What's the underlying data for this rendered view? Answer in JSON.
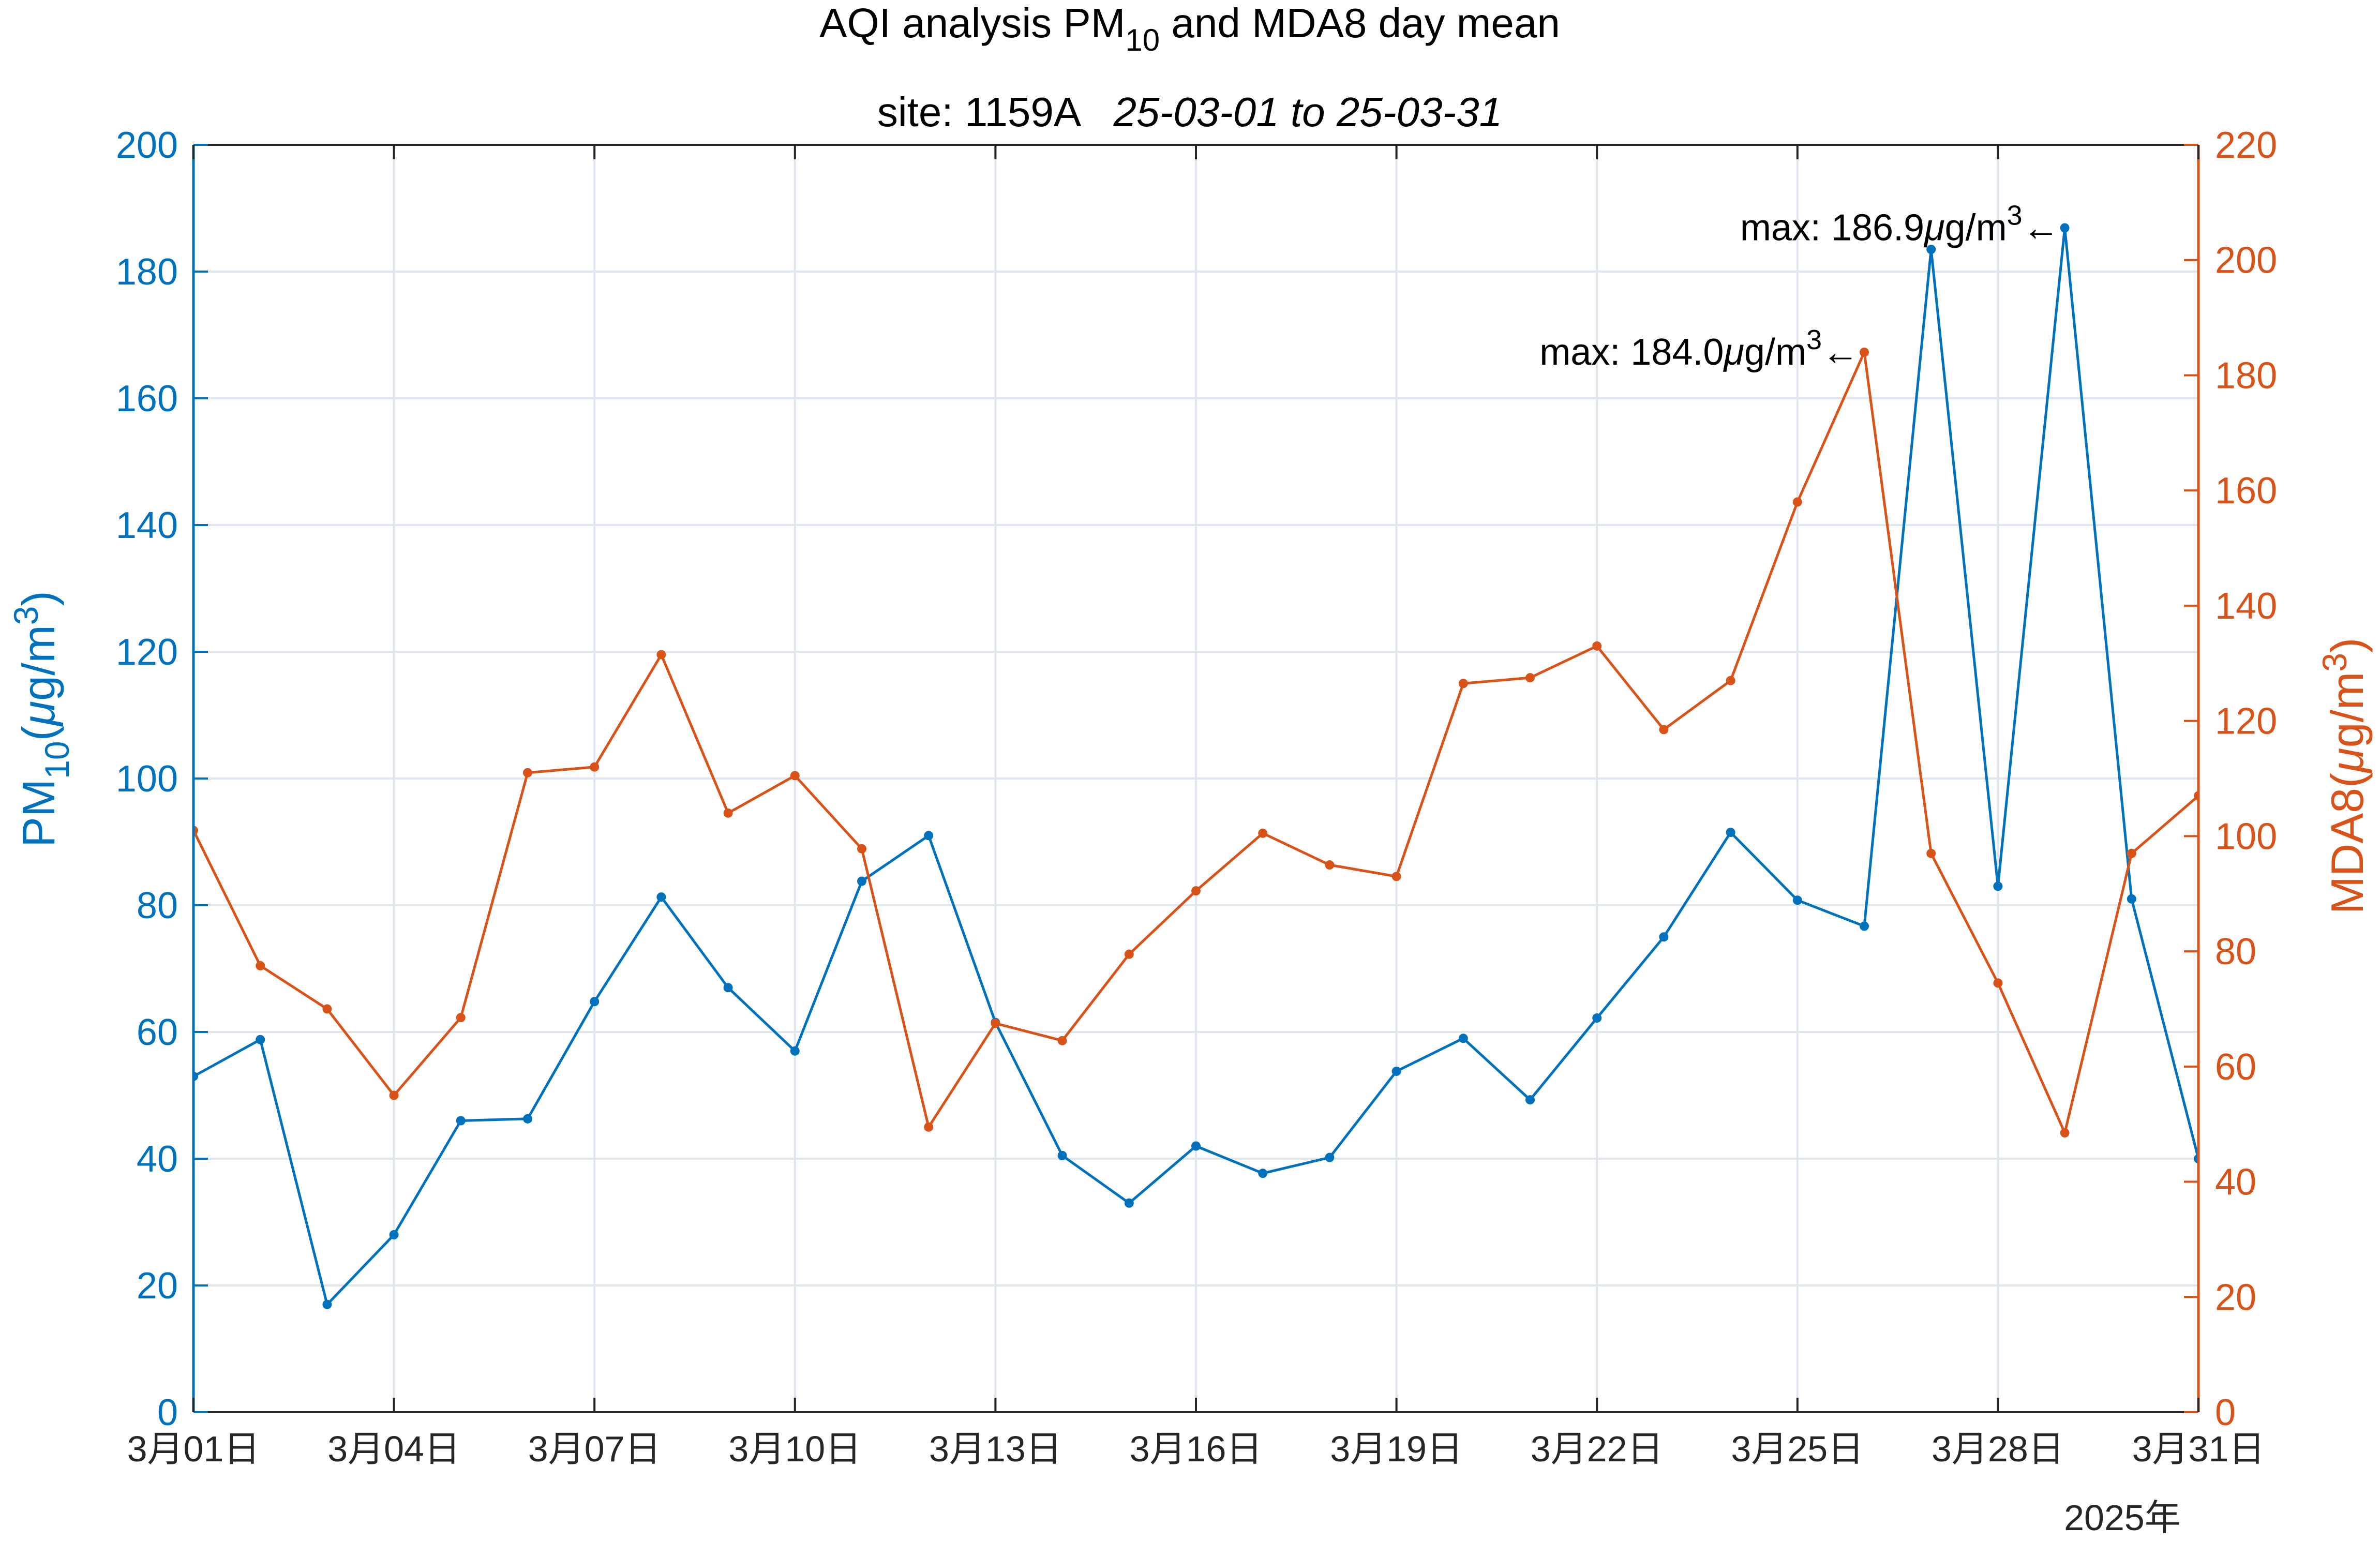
{
  "chart_data": {
    "type": "line",
    "title": "AQI analysis PM",
    "title_subscript": "10",
    "title_rest": " and MDA8 day mean",
    "subtitle_site": "site: 1159A",
    "subtitle_range": "25-03-01 to 25-03-31",
    "x_tick_labels": [
      "3月01日",
      "3月04日",
      "3月07日",
      "3月10日",
      "3月13日",
      "3月16日",
      "3月19日",
      "3月22日",
      "3月25日",
      "3月28日",
      "3月31日"
    ],
    "x_year_label": "2025年",
    "x_dates": [
      "2025-03-01",
      "2025-03-02",
      "2025-03-03",
      "2025-03-04",
      "2025-03-05",
      "2025-03-06",
      "2025-03-07",
      "2025-03-08",
      "2025-03-09",
      "2025-03-10",
      "2025-03-11",
      "2025-03-12",
      "2025-03-13",
      "2025-03-14",
      "2025-03-15",
      "2025-03-16",
      "2025-03-17",
      "2025-03-18",
      "2025-03-19",
      "2025-03-20",
      "2025-03-21",
      "2025-03-22",
      "2025-03-23",
      "2025-03-24",
      "2025-03-25",
      "2025-03-26",
      "2025-03-27",
      "2025-03-28",
      "2025-03-29",
      "2025-03-30",
      "2025-03-31"
    ],
    "y_left": {
      "label_main": "PM",
      "label_sub": "10",
      "label_unit_pre": "(",
      "label_mu": "μ",
      "label_unit": "g/m",
      "label_sup": "3",
      "label_close": ")",
      "lim": [
        0,
        200
      ],
      "ticks": [
        0,
        20,
        40,
        60,
        80,
        100,
        120,
        140,
        160,
        180,
        200
      ]
    },
    "y_right": {
      "label_main": "MDA8(",
      "label_mu": "μ",
      "label_unit": "g/m",
      "label_sup": "3",
      "label_close": ")",
      "lim": [
        0,
        220
      ],
      "ticks": [
        0,
        20,
        40,
        60,
        80,
        100,
        120,
        140,
        160,
        180,
        200,
        220
      ]
    },
    "series": [
      {
        "axis": "left",
        "color": "#0072BD",
        "values": [
          53.0,
          58.8,
          17.0,
          28.0,
          46.0,
          46.3,
          64.8,
          81.3,
          67.0,
          57.0,
          83.8,
          91.0,
          61.5,
          40.5,
          33.0,
          42.0,
          37.7,
          40.2,
          53.8,
          59.0,
          49.3,
          62.2,
          75.0,
          91.5,
          80.8,
          76.7,
          183.5,
          83.0,
          186.9,
          81.0,
          40.0
        ]
      },
      {
        "axis": "right",
        "color": "#D95319",
        "values": [
          101.0,
          77.5,
          70.0,
          55.0,
          68.5,
          111.0,
          112.0,
          131.5,
          104.0,
          110.5,
          97.8,
          49.5,
          67.5,
          64.5,
          79.5,
          90.5,
          100.5,
          95.0,
          93.0,
          126.5,
          127.5,
          133.0,
          118.5,
          127.0,
          158.0,
          184.0,
          97.0,
          74.5,
          48.5,
          97.0,
          107.0
        ]
      }
    ],
    "annotations": [
      {
        "series": 0,
        "day": 29,
        "value": 186.9,
        "text_pre": "max: 186.9",
        "text_mu": "μ",
        "text_unit": "g/m",
        "text_sup": "3",
        "arrow": "←"
      },
      {
        "series": 1,
        "day": 26,
        "value": 184.0,
        "text_pre": "max: 184.0",
        "text_mu": "μ",
        "text_unit": "g/m",
        "text_sup": "3",
        "arrow": "←"
      }
    ],
    "grid": true,
    "colors": {
      "left_axis": "#0072BD",
      "right_axis": "#D95319",
      "grid": "#dfe6ee",
      "text": "#262626"
    }
  }
}
